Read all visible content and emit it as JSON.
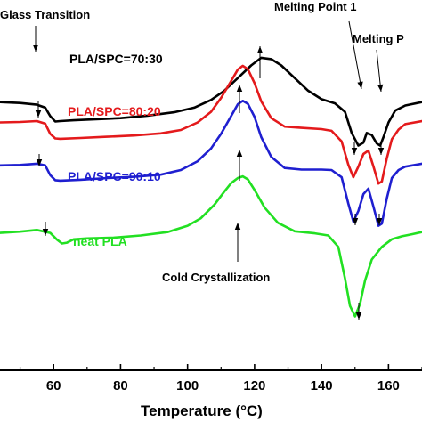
{
  "chart_data": {
    "type": "line",
    "title": "",
    "xlabel": "Temperature (°C)",
    "ylabel": "",
    "xlim": [
      44,
      170
    ],
    "ylim": [
      0,
      100
    ],
    "x_ticks": [
      60,
      80,
      100,
      120,
      140,
      160
    ],
    "grid": false,
    "series": [
      {
        "name": "PLA/SPC=70:30",
        "color": "#000000",
        "points": [
          [
            44,
            75.8
          ],
          [
            50,
            75.6
          ],
          [
            55,
            75.2
          ],
          [
            57.5,
            74.5
          ],
          [
            59,
            72.5
          ],
          [
            60.5,
            71.2
          ],
          [
            62,
            71.3
          ],
          [
            66,
            71.5
          ],
          [
            72,
            71.7
          ],
          [
            80,
            72
          ],
          [
            88,
            72.6
          ],
          [
            96,
            73.4
          ],
          [
            102,
            74.5
          ],
          [
            107,
            76.3
          ],
          [
            111,
            78.5
          ],
          [
            115,
            81.5
          ],
          [
            119,
            84.5
          ],
          [
            122,
            86.3
          ],
          [
            125,
            86
          ],
          [
            128,
            84.5
          ],
          [
            132,
            81.5
          ],
          [
            136,
            78.5
          ],
          [
            140,
            76.5
          ],
          [
            144,
            75.5
          ],
          [
            147,
            73.5
          ],
          [
            149,
            68.5
          ],
          [
            151,
            65.5
          ],
          [
            152.5,
            66.2
          ],
          [
            153.5,
            68.5
          ],
          [
            155,
            68
          ],
          [
            156.5,
            66
          ],
          [
            157.5,
            65.5
          ],
          [
            158.5,
            67.5
          ],
          [
            160,
            71
          ],
          [
            162,
            73.8
          ],
          [
            165,
            75
          ],
          [
            170,
            75.8
          ]
        ]
      },
      {
        "name": "PLA/SPC=80:20",
        "color": "#e41a1c",
        "points": [
          [
            44,
            71
          ],
          [
            50,
            71.1
          ],
          [
            55,
            71.3
          ],
          [
            57.5,
            70.7
          ],
          [
            59,
            68.3
          ],
          [
            60.5,
            67.2
          ],
          [
            62,
            67.1
          ],
          [
            68,
            67.3
          ],
          [
            76,
            67.6
          ],
          [
            84,
            67.9
          ],
          [
            92,
            68.4
          ],
          [
            98,
            69.2
          ],
          [
            103,
            71
          ],
          [
            107,
            73.5
          ],
          [
            110,
            76.8
          ],
          [
            113,
            80.8
          ],
          [
            115,
            83.5
          ],
          [
            116.5,
            84.4
          ],
          [
            118,
            83.6
          ],
          [
            120,
            80.3
          ],
          [
            122,
            76
          ],
          [
            125,
            72
          ],
          [
            129,
            70
          ],
          [
            134,
            69.7
          ],
          [
            140,
            69.4
          ],
          [
            143,
            69
          ],
          [
            146,
            66.5
          ],
          [
            148,
            61
          ],
          [
            149.5,
            58
          ],
          [
            151,
            60.5
          ],
          [
            152.5,
            63.5
          ],
          [
            154,
            64.3
          ],
          [
            155.5,
            60.5
          ],
          [
            157,
            56.5
          ],
          [
            158,
            57
          ],
          [
            159.5,
            62.5
          ],
          [
            161,
            67
          ],
          [
            163,
            69.3
          ],
          [
            165,
            70.6
          ],
          [
            170,
            71.3
          ]
        ]
      },
      {
        "name": "PLA/SPC=90:10",
        "color": "#1f1fd0",
        "points": [
          [
            44,
            60.8
          ],
          [
            50,
            60.9
          ],
          [
            55,
            61.2
          ],
          [
            57.5,
            60.8
          ],
          [
            59,
            58.5
          ],
          [
            60.5,
            57.3
          ],
          [
            62,
            57.2
          ],
          [
            68,
            57.4
          ],
          [
            76,
            57.8
          ],
          [
            84,
            58.1
          ],
          [
            92,
            58.6
          ],
          [
            98,
            59.7
          ],
          [
            103,
            61.8
          ],
          [
            107,
            64.8
          ],
          [
            110,
            68.3
          ],
          [
            113,
            72.5
          ],
          [
            115,
            75.3
          ],
          [
            116.5,
            76.1
          ],
          [
            118,
            75.4
          ],
          [
            120,
            72.3
          ],
          [
            122,
            67.5
          ],
          [
            125,
            62.8
          ],
          [
            129,
            60.2
          ],
          [
            134,
            59.8
          ],
          [
            140,
            59.8
          ],
          [
            143,
            59.7
          ],
          [
            146,
            58
          ],
          [
            148,
            51.8
          ],
          [
            149.5,
            47.5
          ],
          [
            151,
            50
          ],
          [
            152.5,
            54
          ],
          [
            154,
            55.3
          ],
          [
            155.5,
            51
          ],
          [
            157,
            46.5
          ],
          [
            158,
            47
          ],
          [
            159.5,
            53
          ],
          [
            161,
            57.8
          ],
          [
            163,
            59.7
          ],
          [
            165,
            60.5
          ],
          [
            170,
            61.2
          ]
        ]
      },
      {
        "name": "neat PLA",
        "color": "#22e022",
        "points": [
          [
            44,
            44.8
          ],
          [
            50,
            45.1
          ],
          [
            55,
            45.5
          ],
          [
            59,
            44.8
          ],
          [
            61,
            43.2
          ],
          [
            62.5,
            42.3
          ],
          [
            64,
            42.5
          ],
          [
            66,
            43.3
          ],
          [
            70,
            43.5
          ],
          [
            78,
            43.7
          ],
          [
            86,
            44.2
          ],
          [
            94,
            45
          ],
          [
            100,
            46.5
          ],
          [
            104,
            48.3
          ],
          [
            108,
            51.5
          ],
          [
            111,
            54.6
          ],
          [
            113,
            56.6
          ],
          [
            115,
            57.8
          ],
          [
            116.5,
            58.2
          ],
          [
            118,
            57.5
          ],
          [
            120,
            55
          ],
          [
            123,
            50.8
          ],
          [
            127,
            47.2
          ],
          [
            132,
            45.2
          ],
          [
            138,
            44.7
          ],
          [
            142,
            44.2
          ],
          [
            145,
            41.5
          ],
          [
            147,
            34
          ],
          [
            148.5,
            27.5
          ],
          [
            150,
            25
          ],
          [
            151.5,
            28
          ],
          [
            153,
            33.5
          ],
          [
            155,
            38.5
          ],
          [
            158,
            41.5
          ],
          [
            161,
            43.3
          ],
          [
            164,
            44
          ],
          [
            167,
            44.5
          ],
          [
            170,
            45
          ]
        ]
      }
    ],
    "annotations": [
      "Glass Transition",
      "Melting Point 1",
      "Melting P",
      "Cold Crystallization"
    ]
  },
  "labels": {
    "s1": "PLA/SPC=70:30",
    "s2": "PLA/SPC=80:20",
    "s3": "PLA/SPC=90:10",
    "s4": "neat PLA",
    "glass": "Glass Transition",
    "melt1": "Melting Point 1",
    "melt2": "Melting P",
    "cold": "Cold Crystallization",
    "xtitle": "Temperature (",
    "xtitle_unit": "°C)",
    "ticks": [
      "60",
      "80",
      "100",
      "120",
      "140",
      "160"
    ]
  }
}
